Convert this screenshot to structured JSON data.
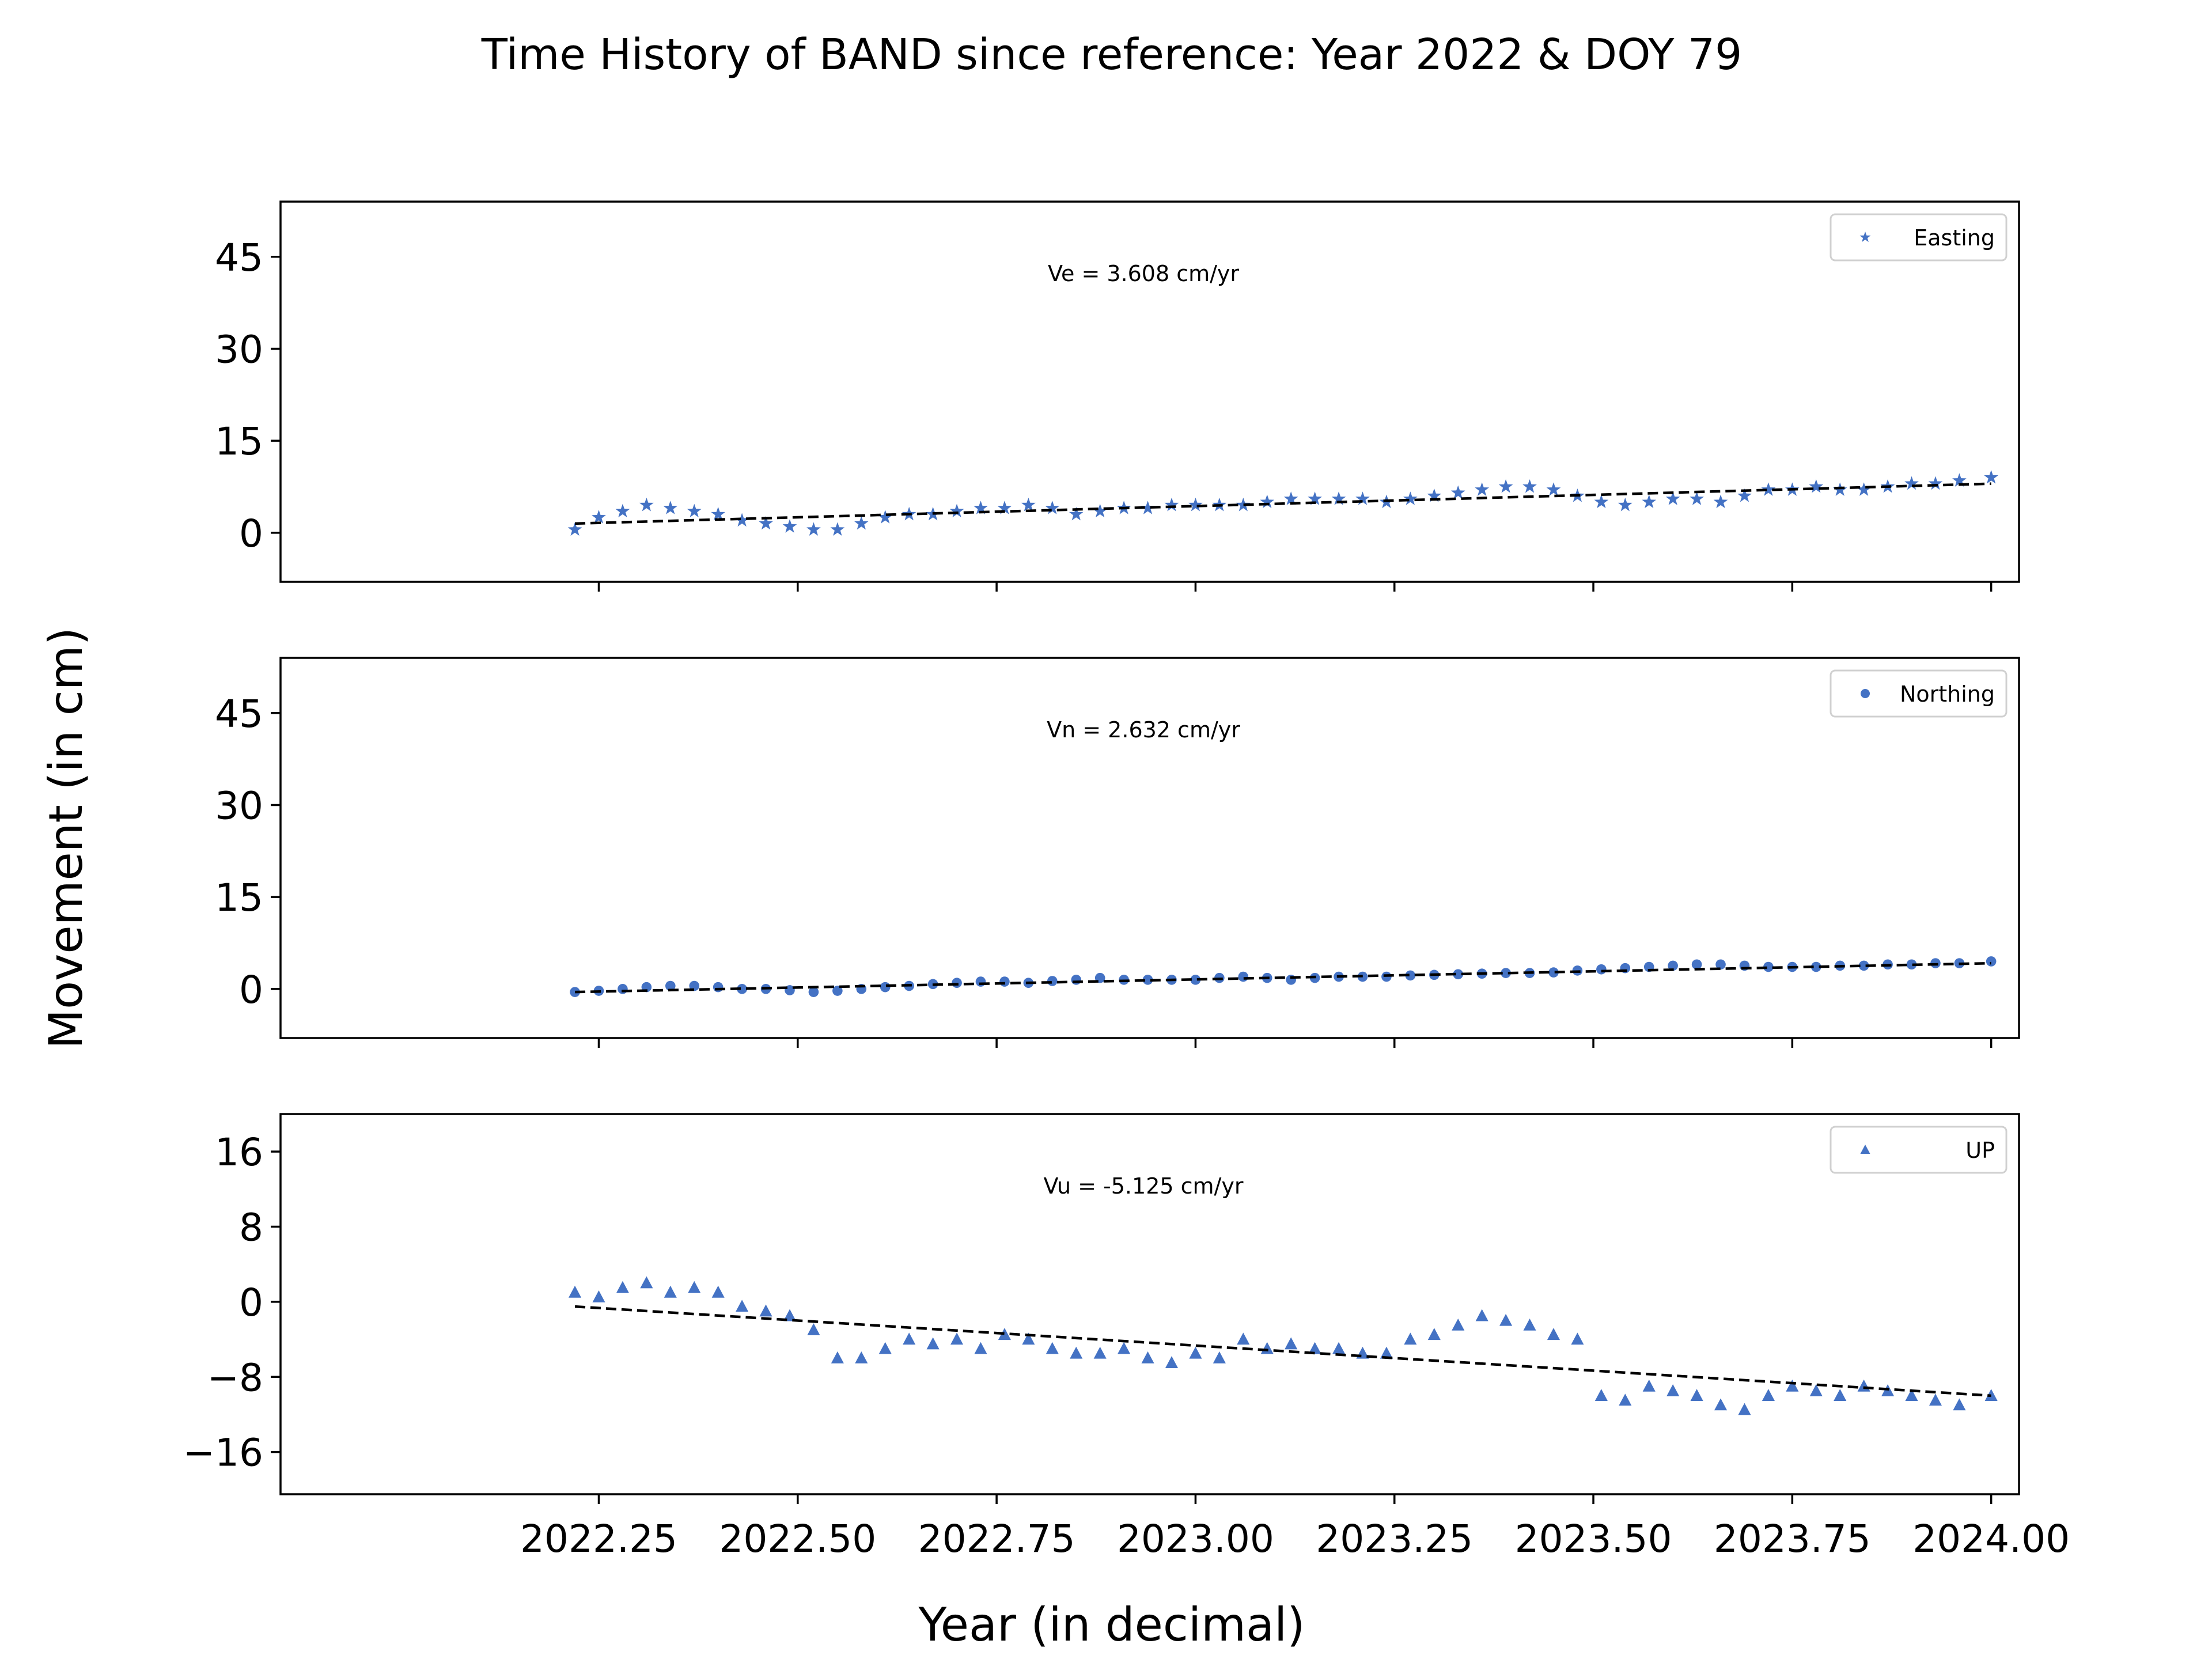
{
  "figure": {
    "title": "Time History of BAND since reference: Year 2022 & DOY 79",
    "xlabel": "Year (in decimal)",
    "ylabel": "Movement (in cm)"
  },
  "colors": {
    "marker": "#4472C4",
    "trend": "#000000"
  },
  "chart_data": [
    {
      "type": "scatter",
      "name": "Easting",
      "marker": "star",
      "xlim": [
        2021.85,
        2024.035
      ],
      "ylim": [
        -8,
        54
      ],
      "x_ticks": [
        "2022.25",
        "2022.50",
        "2022.75",
        "2023.00",
        "2023.25",
        "2023.50",
        "2023.75",
        "2024.00"
      ],
      "y_ticks": [
        "0",
        "15",
        "30",
        "45"
      ],
      "velocity_label": "Ve =  3.608 cm/yr",
      "trend": {
        "x": [
          2022.22,
          2024.0
        ],
        "y": [
          1.5,
          8.0
        ]
      },
      "points": {
        "x": [
          2022.22,
          2022.25,
          2022.28,
          2022.31,
          2022.34,
          2022.37,
          2022.4,
          2022.43,
          2022.46,
          2022.49,
          2022.52,
          2022.55,
          2022.58,
          2022.61,
          2022.64,
          2022.67,
          2022.7,
          2022.73,
          2022.76,
          2022.79,
          2022.82,
          2022.85,
          2022.88,
          2022.91,
          2022.94,
          2022.97,
          2023.0,
          2023.03,
          2023.06,
          2023.09,
          2023.12,
          2023.15,
          2023.18,
          2023.21,
          2023.24,
          2023.27,
          2023.3,
          2023.33,
          2023.36,
          2023.39,
          2023.42,
          2023.45,
          2023.48,
          2023.51,
          2023.54,
          2023.57,
          2023.6,
          2023.63,
          2023.66,
          2023.69,
          2023.72,
          2023.75,
          2023.78,
          2023.81,
          2023.84,
          2023.87,
          2023.9,
          2023.93,
          2023.96,
          2024.0
        ],
        "y": [
          0.5,
          2.5,
          3.5,
          4.5,
          4.0,
          3.5,
          3.0,
          2.0,
          1.5,
          1.0,
          0.5,
          0.5,
          1.5,
          2.5,
          3.0,
          3.0,
          3.5,
          4.0,
          4.0,
          4.5,
          4.0,
          3.0,
          3.5,
          4.0,
          4.0,
          4.5,
          4.5,
          4.5,
          4.5,
          5.0,
          5.5,
          5.5,
          5.5,
          5.5,
          5.0,
          5.5,
          6.0,
          6.5,
          7.0,
          7.5,
          7.5,
          7.0,
          6.0,
          5.0,
          4.5,
          5.0,
          5.5,
          5.5,
          5.0,
          6.0,
          7.0,
          7.0,
          7.5,
          7.0,
          7.0,
          7.5,
          8.0,
          8.0,
          8.5,
          9.0
        ]
      }
    },
    {
      "type": "scatter",
      "name": "Northing",
      "marker": "circle",
      "xlim": [
        2021.85,
        2024.035
      ],
      "ylim": [
        -8,
        54
      ],
      "x_ticks": [
        "2022.25",
        "2022.50",
        "2022.75",
        "2023.00",
        "2023.25",
        "2023.50",
        "2023.75",
        "2024.00"
      ],
      "y_ticks": [
        "0",
        "15",
        "30",
        "45"
      ],
      "velocity_label": "Vn =  2.632 cm/yr",
      "trend": {
        "x": [
          2022.22,
          2024.0
        ],
        "y": [
          -0.5,
          4.2
        ]
      },
      "points": {
        "x": [
          2022.22,
          2022.25,
          2022.28,
          2022.31,
          2022.34,
          2022.37,
          2022.4,
          2022.43,
          2022.46,
          2022.49,
          2022.52,
          2022.55,
          2022.58,
          2022.61,
          2022.64,
          2022.67,
          2022.7,
          2022.73,
          2022.76,
          2022.79,
          2022.82,
          2022.85,
          2022.88,
          2022.91,
          2022.94,
          2022.97,
          2023.0,
          2023.03,
          2023.06,
          2023.09,
          2023.12,
          2023.15,
          2023.18,
          2023.21,
          2023.24,
          2023.27,
          2023.3,
          2023.33,
          2023.36,
          2023.39,
          2023.42,
          2023.45,
          2023.48,
          2023.51,
          2023.54,
          2023.57,
          2023.6,
          2023.63,
          2023.66,
          2023.69,
          2023.72,
          2023.75,
          2023.78,
          2023.81,
          2023.84,
          2023.87,
          2023.9,
          2023.93,
          2023.96,
          2024.0
        ],
        "y": [
          -0.5,
          -0.3,
          0.0,
          0.3,
          0.5,
          0.5,
          0.3,
          0.0,
          0.0,
          -0.2,
          -0.5,
          -0.3,
          0.0,
          0.3,
          0.5,
          0.8,
          1.0,
          1.2,
          1.2,
          1.0,
          1.3,
          1.5,
          1.8,
          1.5,
          1.5,
          1.5,
          1.5,
          1.8,
          2.0,
          1.8,
          1.5,
          1.8,
          2.0,
          2.0,
          2.0,
          2.2,
          2.3,
          2.4,
          2.5,
          2.6,
          2.6,
          2.7,
          3.0,
          3.2,
          3.4,
          3.6,
          3.8,
          4.0,
          4.0,
          3.8,
          3.6,
          3.6,
          3.6,
          3.8,
          3.8,
          4.0,
          4.0,
          4.2,
          4.2,
          4.5
        ]
      }
    },
    {
      "type": "scatter",
      "name": "UP",
      "marker": "triangle",
      "xlim": [
        2021.85,
        2024.035
      ],
      "ylim": [
        -20.5,
        20
      ],
      "x_ticks": [
        "2022.25",
        "2022.50",
        "2022.75",
        "2023.00",
        "2023.25",
        "2023.50",
        "2023.75",
        "2024.00"
      ],
      "y_ticks": [
        "16",
        "8",
        "0",
        "−8",
        "−16"
      ],
      "velocity_label": "Vu = -5.125 cm/yr",
      "trend": {
        "x": [
          2022.22,
          2024.0
        ],
        "y": [
          -0.5,
          -10.0
        ]
      },
      "points": {
        "x": [
          2022.22,
          2022.25,
          2022.28,
          2022.31,
          2022.34,
          2022.37,
          2022.4,
          2022.43,
          2022.46,
          2022.49,
          2022.52,
          2022.55,
          2022.58,
          2022.61,
          2022.64,
          2022.67,
          2022.7,
          2022.73,
          2022.76,
          2022.79,
          2022.82,
          2022.85,
          2022.88,
          2022.91,
          2022.94,
          2022.97,
          2023.0,
          2023.03,
          2023.06,
          2023.09,
          2023.12,
          2023.15,
          2023.18,
          2023.21,
          2023.24,
          2023.27,
          2023.3,
          2023.33,
          2023.36,
          2023.39,
          2023.42,
          2023.45,
          2023.48,
          2023.51,
          2023.54,
          2023.57,
          2023.6,
          2023.63,
          2023.66,
          2023.69,
          2023.72,
          2023.75,
          2023.78,
          2023.81,
          2023.84,
          2023.87,
          2023.9,
          2023.93,
          2023.96,
          2024.0
        ],
        "y": [
          1.0,
          0.5,
          1.5,
          2.0,
          1.0,
          1.5,
          1.0,
          -0.5,
          -1.0,
          -1.5,
          -3.0,
          -6.0,
          -6.0,
          -5.0,
          -4.0,
          -4.5,
          -4.0,
          -5.0,
          -3.5,
          -4.0,
          -5.0,
          -5.5,
          -5.5,
          -5.0,
          -6.0,
          -6.5,
          -5.5,
          -6.0,
          -4.0,
          -5.0,
          -4.5,
          -5.0,
          -5.0,
          -5.5,
          -5.5,
          -4.0,
          -3.5,
          -2.5,
          -1.5,
          -2.0,
          -2.5,
          -3.5,
          -4.0,
          -10.0,
          -10.5,
          -9.0,
          -9.5,
          -10.0,
          -11.0,
          -11.5,
          -10.0,
          -9.0,
          -9.5,
          -10.0,
          -9.0,
          -9.5,
          -10.0,
          -10.5,
          -11.0,
          -10.0
        ]
      }
    }
  ]
}
